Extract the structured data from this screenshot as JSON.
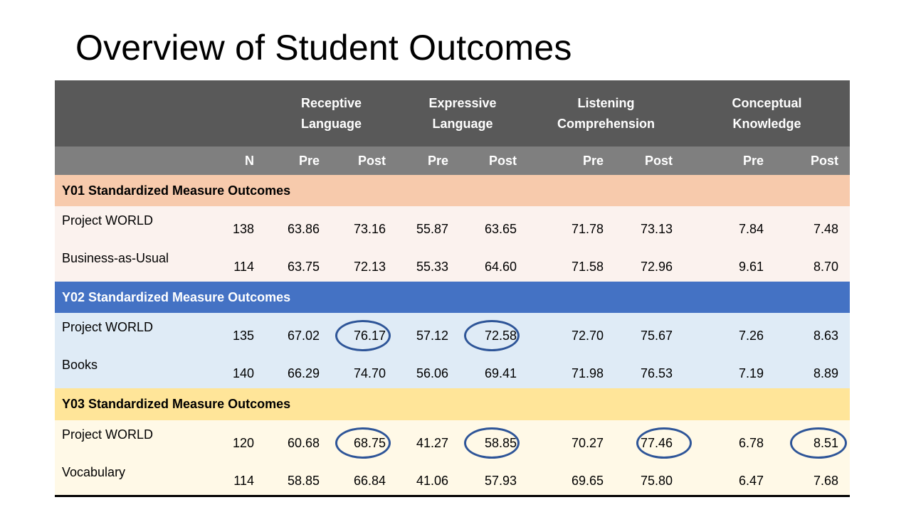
{
  "title": "Overview of Student Outcomes",
  "table": {
    "groups": [
      {
        "line1": "Receptive",
        "line2": "Language"
      },
      {
        "line1": "Expressive",
        "line2": "Language"
      },
      {
        "line1": "Listening",
        "line2": "Comprehension"
      },
      {
        "line1": "Conceptual",
        "line2": "Knowledge"
      }
    ],
    "subheaders": [
      "N",
      "Pre",
      "Post",
      "Pre",
      "Post",
      "Pre",
      "Post",
      "Pre",
      "Post"
    ],
    "sections": [
      {
        "label": "Y01 Standardized Measure Outcomes",
        "rows": [
          {
            "name": "Project WORLD",
            "values": [
              "138",
              "63.86",
              "73.16",
              "55.87",
              "63.65",
              "71.78",
              "73.13",
              "7.84",
              "7.48"
            ]
          },
          {
            "name": "Business-as-Usual",
            "values": [
              "114",
              "63.75",
              "72.13",
              "55.33",
              "64.60",
              "71.58",
              "72.96",
              "9.61",
              "8.70"
            ]
          }
        ]
      },
      {
        "label": "Y02 Standardized Measure Outcomes",
        "rows": [
          {
            "name": "Project WORLD",
            "values": [
              "135",
              "67.02",
              "76.17",
              "57.12",
              "72.58",
              "72.70",
              "75.67",
              "7.26",
              "8.63"
            ]
          },
          {
            "name": "Books",
            "values": [
              "140",
              "66.29",
              "74.70",
              "56.06",
              "69.41",
              "71.98",
              "76.53",
              "7.19",
              "8.89"
            ]
          }
        ]
      },
      {
        "label": "Y03 Standardized Measure Outcomes",
        "rows": [
          {
            "name": "Project WORLD",
            "values": [
              "120",
              "60.68",
              "68.75",
              "41.27",
              "58.85",
              "70.27",
              "77.46",
              "6.78",
              "8.51"
            ]
          },
          {
            "name": "Vocabulary",
            "values": [
              "114",
              "58.85",
              "66.84",
              "41.06",
              "57.93",
              "69.65",
              "75.80",
              "6.47",
              "7.68"
            ]
          }
        ]
      }
    ]
  },
  "colors": {
    "header_dark": "#595959",
    "header_mid": "#7f7f7f",
    "y01_band": "#f7caac",
    "y02_band": "#4472c4",
    "y03_band": "#ffe599",
    "highlight_circle": "#2e5598"
  }
}
